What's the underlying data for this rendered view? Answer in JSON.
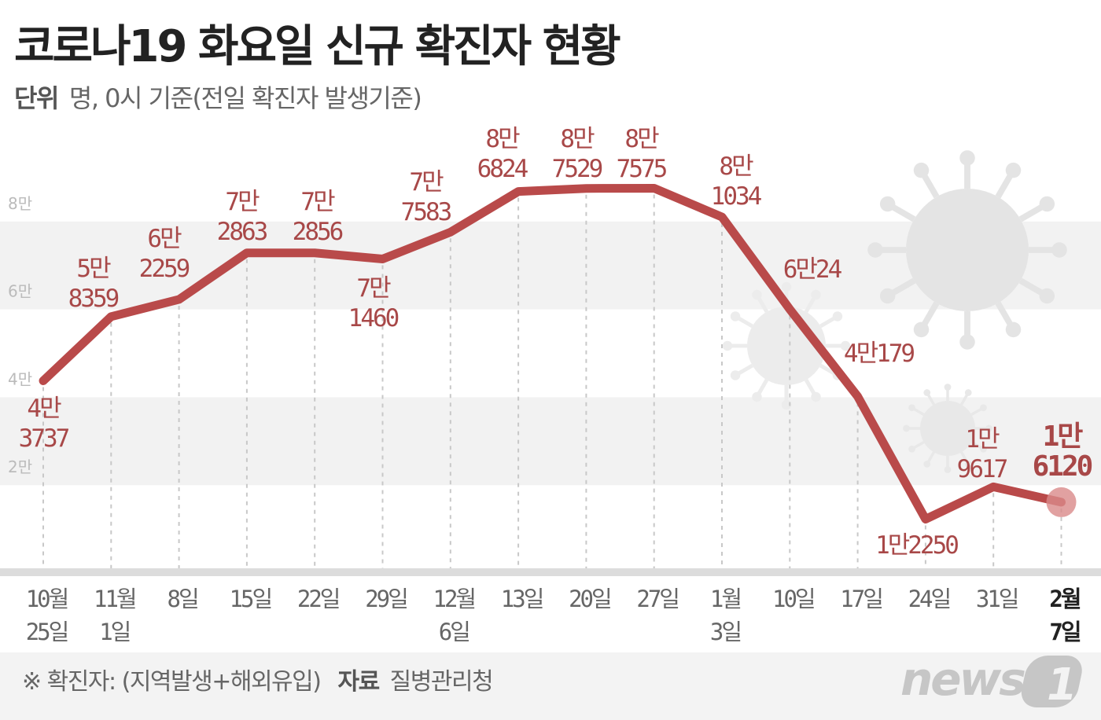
{
  "title": "코로나19 화요일 신규 확진자 현황",
  "unit": {
    "label": "단위",
    "text": "명, 0시 기준(전일 확진자 발생기준)"
  },
  "footer": {
    "note": "※ 확진자: (지역발생+해외유입)",
    "source_label": "자료",
    "source": "질병관리청"
  },
  "logo": "news1",
  "colors": {
    "line": "#b94a4a",
    "label": "#a84848",
    "band": "#f2f2f2",
    "tick": "#bbbbbb"
  },
  "chart_data": {
    "type": "line",
    "title": "코로나19 화요일 신규 확진자 현황",
    "xlabel": "",
    "ylabel": "",
    "ylim": [
      0,
      90000
    ],
    "grid": false,
    "y_ticks": [
      {
        "value": 80000,
        "label": "8만"
      },
      {
        "value": 60000,
        "label": "6만"
      },
      {
        "value": 40000,
        "label": "4만"
      },
      {
        "value": 20000,
        "label": "2만"
      }
    ],
    "categories": [
      [
        "10월",
        "25일"
      ],
      [
        "11월",
        "1일"
      ],
      [
        "8일"
      ],
      [
        "15일"
      ],
      [
        "22일"
      ],
      [
        "29일"
      ],
      [
        "12월",
        "6일"
      ],
      [
        "13일"
      ],
      [
        "20일"
      ],
      [
        "27일"
      ],
      [
        "1월",
        "3일"
      ],
      [
        "10일"
      ],
      [
        "17일"
      ],
      [
        "24일"
      ],
      [
        "31일"
      ],
      [
        "2월",
        "7일"
      ]
    ],
    "values": [
      43737,
      58359,
      62259,
      72863,
      72856,
      71460,
      77583,
      86824,
      87529,
      87575,
      81034,
      60024,
      40179,
      12250,
      19617,
      16120
    ],
    "data_labels": [
      [
        "4만",
        "3737"
      ],
      [
        "5만",
        "8359"
      ],
      [
        "6만",
        "2259"
      ],
      [
        "7만",
        "2863"
      ],
      [
        "7만",
        "2856"
      ],
      [
        "7만",
        "1460"
      ],
      [
        "7만",
        "7583"
      ],
      [
        "8만",
        "6824"
      ],
      [
        "8만",
        "7529"
      ],
      [
        "8만",
        "7575"
      ],
      [
        "8만",
        "1034"
      ],
      [
        "6만24"
      ],
      [
        "4만179"
      ],
      [
        "1만2250"
      ],
      [
        "1만",
        "9617"
      ],
      [
        "1만",
        "6120"
      ]
    ],
    "highlight_index": 15
  }
}
